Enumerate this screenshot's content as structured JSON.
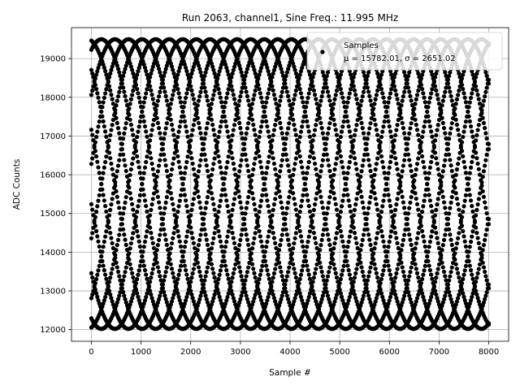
{
  "chart_data": {
    "type": "scatter",
    "title": "Run 2063, channel1, Sine Freq.: 11.995 MHz",
    "xlabel": "Sample #",
    "ylabel": "ADC Counts",
    "xlim": [
      -400,
      8400
    ],
    "ylim": [
      11700,
      19800
    ],
    "xticks": [
      0,
      1000,
      2000,
      3000,
      4000,
      5000,
      6000,
      7000,
      8000
    ],
    "yticks": [
      12000,
      13000,
      14000,
      15000,
      16000,
      17000,
      18000,
      19000
    ],
    "grid": true,
    "legend_position": "top-right",
    "series": [
      {
        "name": "Samples",
        "stats_label": "μ = 15782.01, σ = 2651.02",
        "marker": "dot",
        "color": "#000000",
        "model": {
          "mean": 15760,
          "amplitude": 3740,
          "num_traces": 12,
          "base_phase_deg": 158,
          "phase_step_deg": 30,
          "period_samples": 3280,
          "x_start": 0,
          "x_end": 8000,
          "x_step": 20
        }
      }
    ]
  }
}
